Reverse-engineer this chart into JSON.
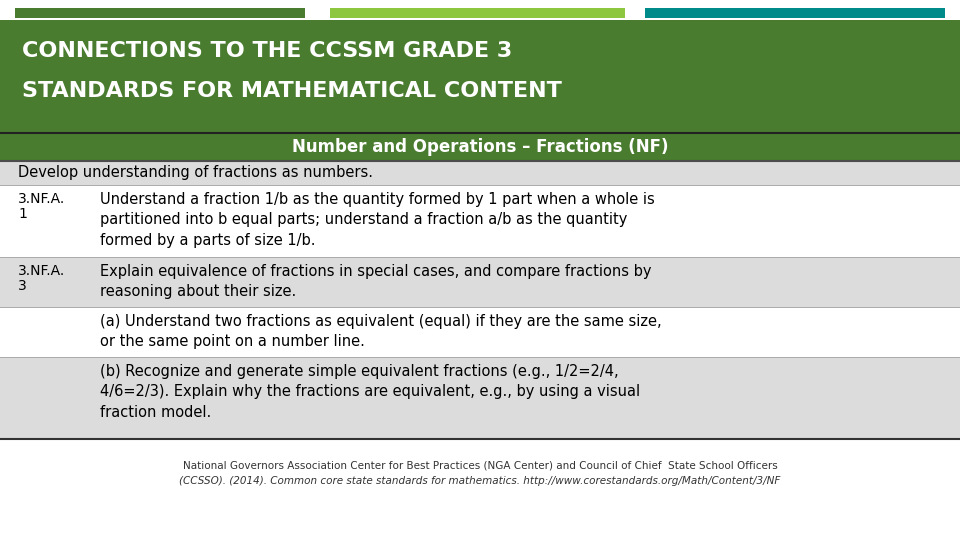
{
  "title_line1": "CONNECTIONS TO THE CCSSM GRADE 3",
  "title_line2": "STANDARDS FOR MATHEMATICAL CONTENT",
  "title_bg": "#4a7c2f",
  "title_text_color": "#ffffff",
  "section_header": "Number and Operations – Fractions (NF)",
  "section_header_bg": "#4a7c2f",
  "section_header_text_color": "#ffffff",
  "top_bar_colors": [
    "#4a7c2f",
    "#8dc63f",
    "#008b8b"
  ],
  "bg_color": "#ffffff",
  "row_light": "#dcdcdc",
  "row_white": "#ffffff",
  "body_fontsize": 10.5,
  "std_fontsize": 10.0,
  "header_fontsize": 12,
  "title_fontsize": 16,
  "footer_text1": "National Governors Association Center for Best Practices (NGA Center) and Council of Chief  State School Officers",
  "footer_text2_prefix": "(CCSSO). (2014). ",
  "footer_text2_italic": "Common core state standards for mathematics.",
  "footer_text2_suffix": " http://www.corestandards.org/Math/Content/3/NF",
  "row0_text": "Develop understanding of fractions as numbers.",
  "row1_std1": "3.NF.A.",
  "row1_std2": "1",
  "row1_content": "Understand a fraction 1/b as the quantity formed by 1 part when a whole is\npartitioned into b equal parts; understand a fraction a/b as the quantity\nformed by a parts of size 1/b.",
  "row2_std1": "3.NF.A.",
  "row2_std2": "3",
  "row2_content": "Explain equivalence of fractions in special cases, and compare fractions by\nreasoning about their size.",
  "row3_content": "(a) Understand two fractions as equivalent (equal) if they are the same size,\nor the same point on a number line.",
  "row4_content": "(b) Recognize and generate simple equivalent fractions (e.g., 1/2=2/4,\n4/6=2/3). Explain why the fractions are equivalent, e.g., by using a visual\nfraction model."
}
